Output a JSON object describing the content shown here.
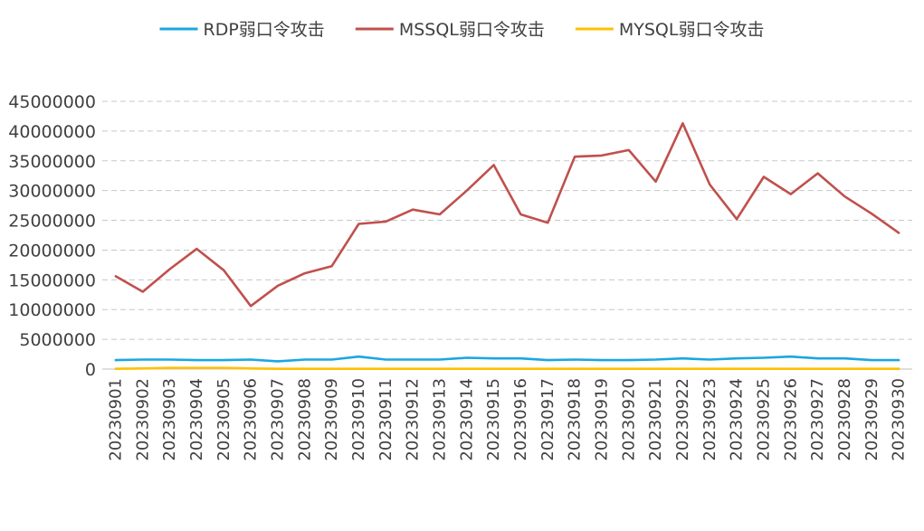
{
  "chart_data": {
    "type": "line",
    "title": "",
    "xlabel": "",
    "ylabel": "",
    "ylim": [
      0,
      45000000
    ],
    "yticks": [
      0,
      5000000,
      10000000,
      15000000,
      20000000,
      25000000,
      30000000,
      35000000,
      40000000,
      45000000
    ],
    "grid": true,
    "legend_position": "top",
    "categories": [
      "20230901",
      "20230902",
      "20230903",
      "20230904",
      "20230905",
      "20230906",
      "20230907",
      "20230908",
      "20230909",
      "20230910",
      "20230911",
      "20230912",
      "20230913",
      "20230914",
      "20230915",
      "20230916",
      "20230917",
      "20230918",
      "20230919",
      "20230920",
      "20230921",
      "20230922",
      "20230923",
      "20230924",
      "20230925",
      "20230926",
      "20230927",
      "20230928",
      "20230929",
      "20230930"
    ],
    "series": [
      {
        "name": "RDP弱口令攻击",
        "color": "#1aa7e0",
        "values": [
          1500000,
          1600000,
          1600000,
          1500000,
          1500000,
          1600000,
          1300000,
          1600000,
          1600000,
          2100000,
          1600000,
          1600000,
          1600000,
          1900000,
          1800000,
          1800000,
          1500000,
          1600000,
          1500000,
          1500000,
          1600000,
          1800000,
          1600000,
          1800000,
          1900000,
          2100000,
          1800000,
          1800000,
          1500000,
          1500000
        ]
      },
      {
        "name": "MSSQL弱口令攻击",
        "color": "#c0504d",
        "values": [
          15600000,
          13000000,
          16800000,
          20200000,
          16600000,
          10600000,
          14000000,
          16100000,
          17300000,
          24400000,
          24800000,
          26800000,
          26000000,
          30000000,
          34300000,
          26000000,
          24600000,
          35700000,
          35900000,
          36800000,
          31500000,
          41300000,
          31000000,
          25200000,
          32300000,
          29400000,
          32900000,
          29000000,
          26100000,
          22900000
        ]
      },
      {
        "name": "MYSQL弱口令攻击",
        "color": "#ffc000",
        "values": [
          50000,
          100000,
          200000,
          200000,
          200000,
          100000,
          50000,
          50000,
          50000,
          50000,
          50000,
          50000,
          50000,
          50000,
          50000,
          50000,
          50000,
          50000,
          50000,
          50000,
          50000,
          50000,
          50000,
          50000,
          50000,
          50000,
          50000,
          50000,
          50000,
          50000
        ]
      }
    ]
  }
}
